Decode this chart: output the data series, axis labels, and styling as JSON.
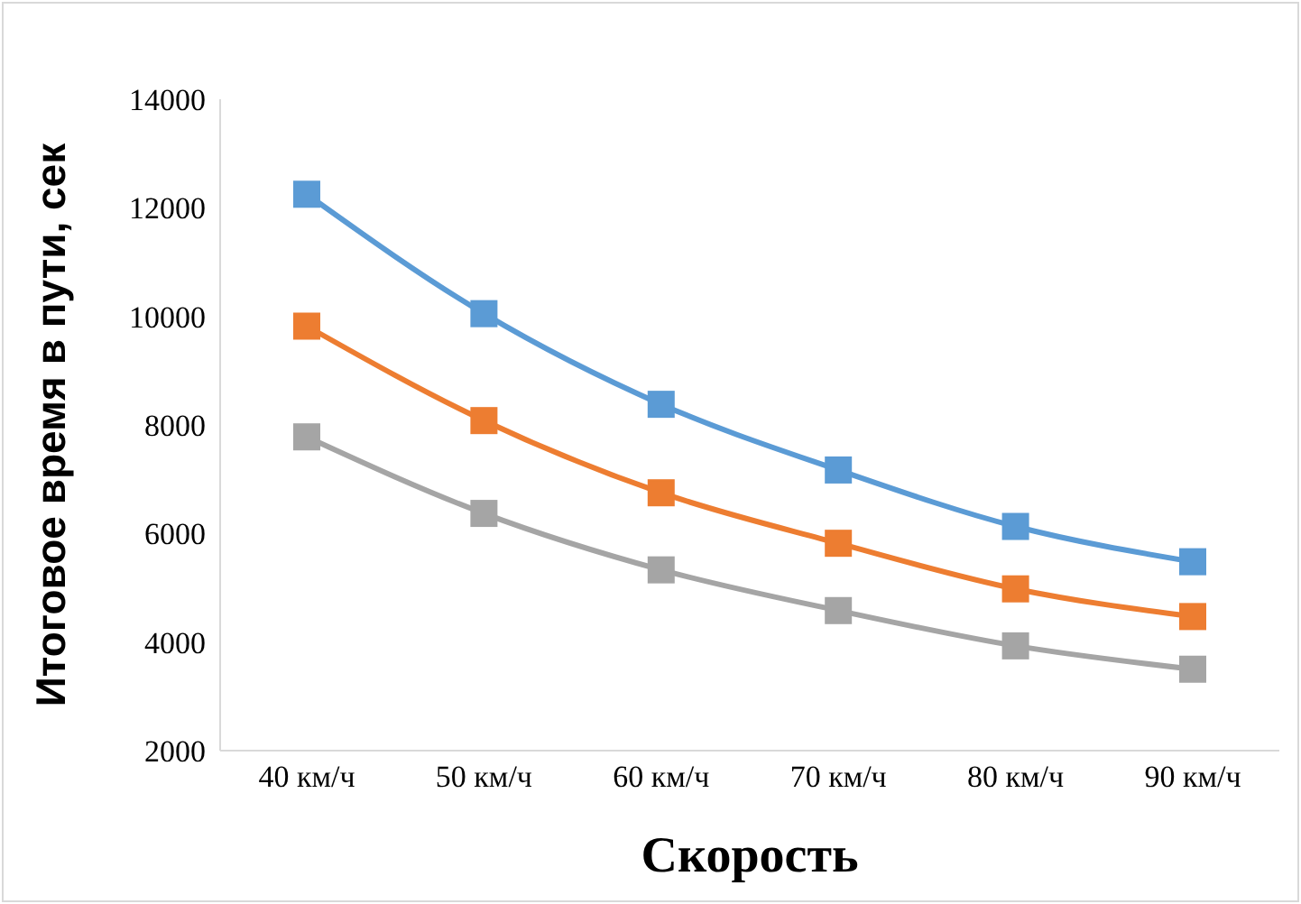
{
  "chart_data": {
    "type": "line",
    "xlabel": "Скорость",
    "ylabel": "Итоговое время в пути, сек",
    "categories": [
      "40 км/ч",
      "50 км/ч",
      "60 км/ч",
      "70 км/ч",
      "80 км/ч",
      "90 км/ч"
    ],
    "series": [
      {
        "color": "#5b9bd5",
        "values": [
          12250,
          10050,
          8380,
          7170,
          6130,
          5480
        ]
      },
      {
        "color": "#ed7d31",
        "values": [
          9820,
          8080,
          6750,
          5820,
          4980,
          4470
        ]
      },
      {
        "color": "#a5a5a5",
        "values": [
          7780,
          6370,
          5330,
          4580,
          3930,
          3500
        ]
      }
    ],
    "ylim": [
      2000,
      14000
    ],
    "yticks": [
      2000,
      4000,
      6000,
      8000,
      10000,
      12000,
      14000
    ],
    "grid": false,
    "legend": false,
    "marker": "square",
    "line_style": "solid"
  }
}
